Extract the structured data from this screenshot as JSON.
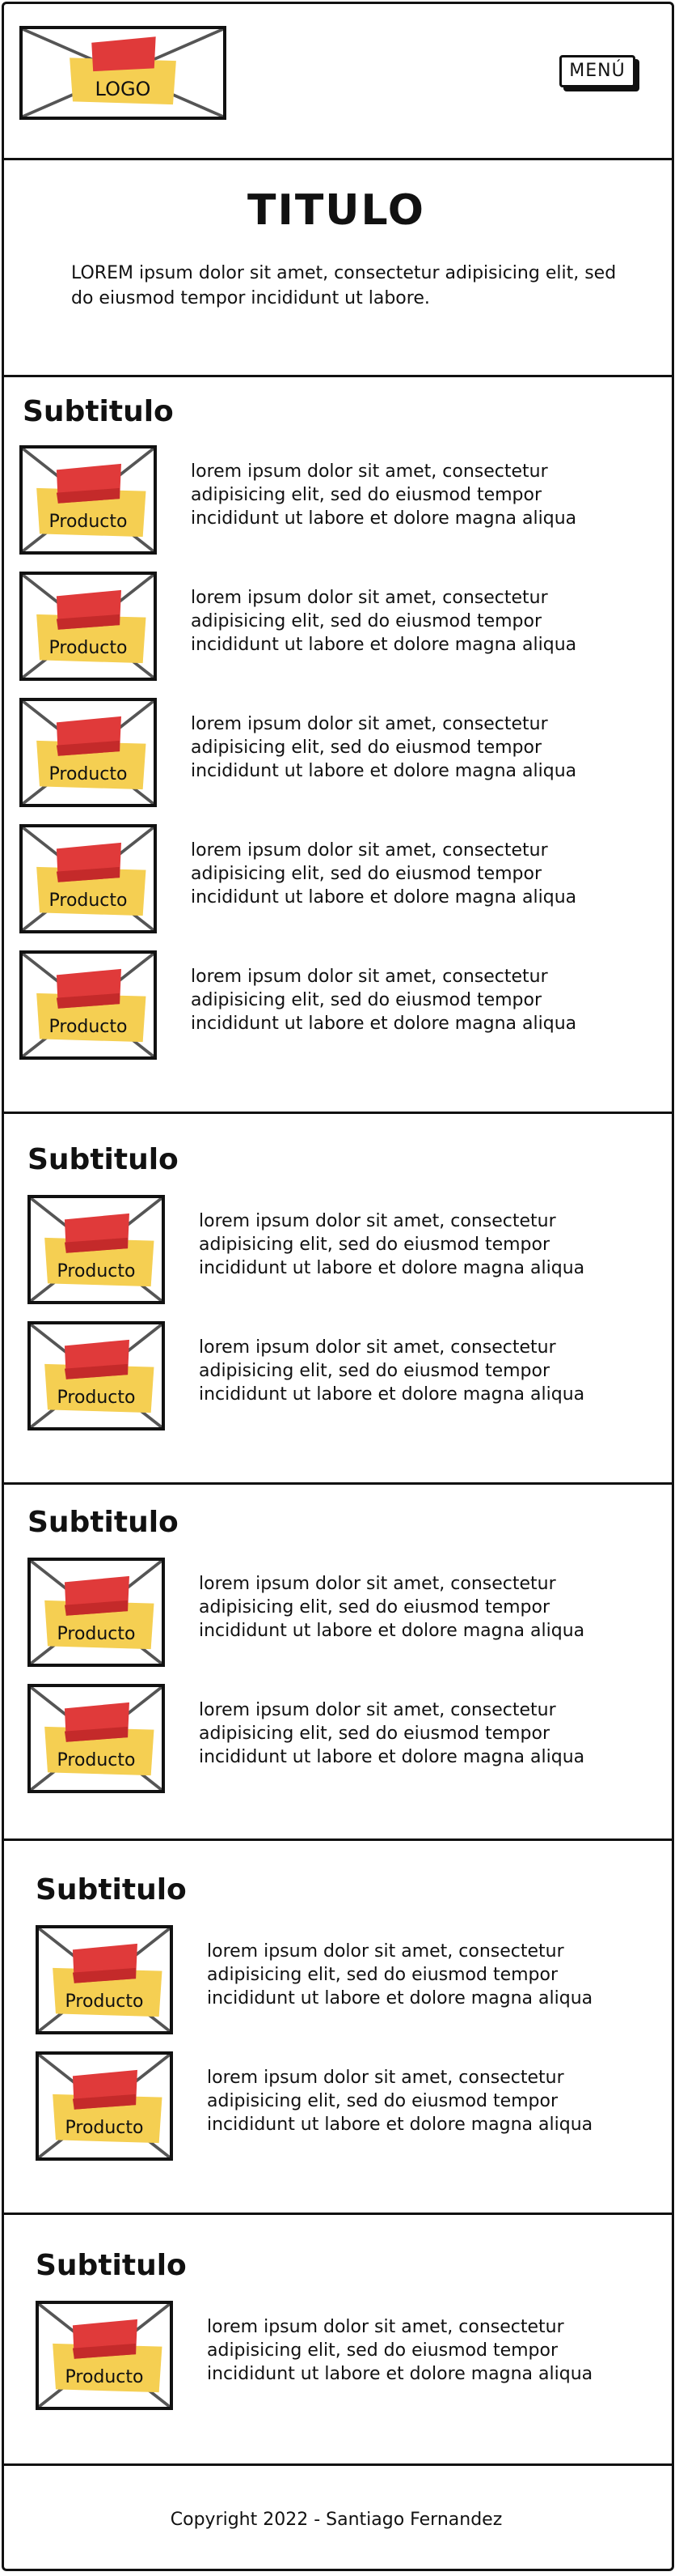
{
  "header": {
    "logo_label": "LOGO",
    "menu_label": "MENÚ"
  },
  "hero": {
    "title": "TITULO",
    "text": "LOREM ipsum dolor sit amet, consectetur adipisicing elit, sed do eiusmod tempor incididunt ut labore."
  },
  "colors": {
    "sticky": "#f5cf52",
    "tag": "#e03a3a",
    "ink": "#111111"
  },
  "sections": [
    {
      "subtitle": "Subtitulo",
      "products": [
        {
          "label": "Producto",
          "desc": "lorem ipsum dolor sit amet, consectetur adipisicing elit, sed do eiusmod tempor incididunt ut labore et dolore magna aliqua"
        },
        {
          "label": "Producto",
          "desc": "lorem ipsum dolor sit amet, consectetur adipisicing elit, sed do eiusmod tempor incididunt ut labore et dolore magna aliqua"
        },
        {
          "label": "Producto",
          "desc": "lorem ipsum dolor sit amet, consectetur adipisicing elit, sed do eiusmod tempor incididunt ut labore et dolore magna aliqua"
        },
        {
          "label": "Producto",
          "desc": "lorem ipsum dolor sit amet, consectetur adipisicing elit, sed do eiusmod tempor incididunt ut labore et dolore magna aliqua"
        },
        {
          "label": "Producto",
          "desc": "lorem ipsum dolor sit amet, consectetur adipisicing elit, sed do eiusmod tempor incididunt ut labore et dolore magna aliqua"
        }
      ]
    },
    {
      "subtitle": "Subtitulo",
      "products": [
        {
          "label": "Producto",
          "desc": "lorem ipsum dolor sit amet, consectetur adipisicing elit, sed do eiusmod tempor incididunt ut labore et dolore magna aliqua"
        },
        {
          "label": "Producto",
          "desc": "lorem ipsum dolor sit amet, consectetur adipisicing elit, sed do eiusmod tempor incididunt ut labore et dolore magna aliqua"
        }
      ]
    },
    {
      "subtitle": "Subtitulo",
      "products": [
        {
          "label": "Producto",
          "desc": "lorem ipsum dolor sit amet, consectetur adipisicing elit, sed do eiusmod tempor incididunt ut labore et dolore magna aliqua"
        },
        {
          "label": "Producto",
          "desc": "lorem ipsum dolor sit amet, consectetur adipisicing elit, sed do eiusmod tempor incididunt ut labore et dolore magna aliqua"
        }
      ]
    },
    {
      "subtitle": "Subtitulo",
      "products": [
        {
          "label": "Producto",
          "desc": "lorem ipsum dolor sit amet, consectetur adipisicing elit, sed do eiusmod tempor incididunt ut labore et dolore magna aliqua"
        },
        {
          "label": "Producto",
          "desc": "lorem ipsum dolor sit amet, consectetur adipisicing elit, sed do eiusmod tempor incididunt ut labore et dolore magna aliqua"
        }
      ]
    },
    {
      "subtitle": "Subtitulo",
      "products": [
        {
          "label": "Producto",
          "desc": "lorem ipsum dolor sit amet, consectetur adipisicing elit, sed do eiusmod tempor incididunt ut labore et dolore magna aliqua"
        }
      ]
    }
  ],
  "footer": {
    "text": "Copyright 2022 - Santiago Fernandez"
  }
}
